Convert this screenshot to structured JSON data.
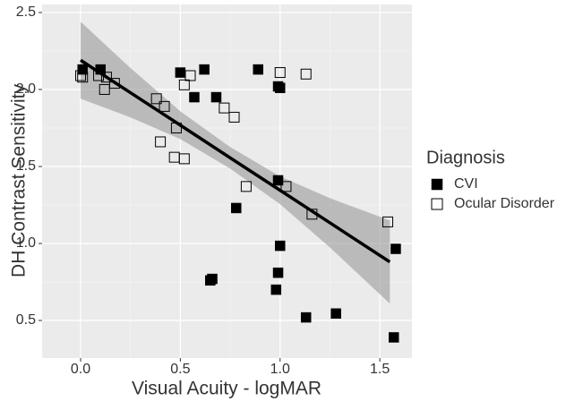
{
  "chart_data": {
    "type": "scatter",
    "x_label": "Visual Acuity - logMAR",
    "y_label": "DH Contrast Sensitivity",
    "xlim": [
      -0.193,
      1.661
    ],
    "ylim": [
      0.256,
      2.552
    ],
    "xticks": [
      {
        "value": 0,
        "label": "0.0"
      },
      0.5,
      {
        "value": 1,
        "label": "1.0"
      },
      1.5
    ],
    "yticks": [
      0.5,
      {
        "value": 1,
        "label": "1.0"
      },
      1.5,
      {
        "value": 2,
        "label": "2.0"
      },
      2.5
    ],
    "grid": true,
    "legend_title": "Diagnosis",
    "legend_position": "right",
    "series": [
      {
        "name": "CVI",
        "color": "#000000",
        "marker": "filled-square",
        "x": [
          0.01,
          0.1,
          0.5,
          0.62,
          0.89,
          0.99,
          1.0,
          0.57,
          0.68,
          0.99,
          0.78,
          1.0,
          1.58,
          0.99,
          0.66,
          0.65,
          0.98,
          1.13,
          1.28,
          1.57
        ],
        "values": [
          2.13,
          2.13,
          2.11,
          2.13,
          2.13,
          2.02,
          2.01,
          1.95,
          1.95,
          1.41,
          1.23,
          0.985,
          0.965,
          0.81,
          0.77,
          0.76,
          0.7,
          0.52,
          0.545,
          0.39
        ]
      },
      {
        "name": "Ocular Disorder",
        "color": "#000000",
        "marker": "open-square",
        "x": [
          0.0,
          0.01,
          0.09,
          0.13,
          0.12,
          0.17,
          0.38,
          0.42,
          0.4,
          0.47,
          0.52,
          0.48,
          0.52,
          0.55,
          0.72,
          0.77,
          0.83,
          1.0,
          1.13,
          1.03,
          1.16,
          1.54
        ],
        "values": [
          2.09,
          2.08,
          2.09,
          2.08,
          2.0,
          2.04,
          1.94,
          1.89,
          1.66,
          1.56,
          1.55,
          1.75,
          2.03,
          2.09,
          1.88,
          1.82,
          1.37,
          2.11,
          2.1,
          1.37,
          1.19,
          1.14
        ]
      }
    ],
    "fit": {
      "color": "#000000",
      "band_color": "#999999",
      "x": [
        0,
        0.25,
        0.5,
        0.75,
        1.0,
        1.25,
        1.55
      ],
      "values": [
        2.19,
        1.979,
        1.768,
        1.556,
        1.345,
        1.134,
        0.88
      ],
      "lower": [
        1.94,
        1.819,
        1.678,
        1.486,
        1.255,
        0.974,
        0.61
      ],
      "upper": [
        2.44,
        2.139,
        1.858,
        1.626,
        1.435,
        1.294,
        1.15
      ]
    }
  }
}
